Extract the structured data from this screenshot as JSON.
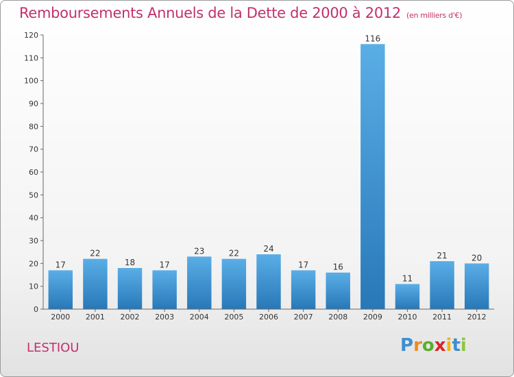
{
  "title": "Remboursements Annuels de la Dette de 2000 à 2012",
  "unit": "(en milliers d'€)",
  "commune": "LESTIOU",
  "logo": {
    "letters": [
      "P",
      "r",
      "o",
      "x",
      "i",
      "t",
      "i"
    ],
    "colors": [
      "#3b8fd0",
      "#f08a1c",
      "#5aae2e",
      "#d6262a",
      "#f2b41b",
      "#3b8fd0",
      "#8cc63f"
    ]
  },
  "colors": {
    "bar_top": "#5aaee6",
    "bar_bottom": "#2878b8",
    "title": "#c2306a",
    "axis": "#666666",
    "grid": "#e0e0e0"
  },
  "chart_data": {
    "type": "bar",
    "categories": [
      "2000",
      "2001",
      "2002",
      "2003",
      "2004",
      "2005",
      "2006",
      "2007",
      "2008",
      "2009",
      "2010",
      "2011",
      "2012"
    ],
    "values": [
      17,
      22,
      18,
      17,
      23,
      22,
      24,
      17,
      16,
      116,
      11,
      21,
      20
    ],
    "title": "Remboursements Annuels de la Dette de 2000 à 2012",
    "xlabel": "",
    "ylabel": "",
    "ylim": [
      0,
      120
    ],
    "yticks": [
      0,
      10,
      20,
      30,
      40,
      50,
      60,
      70,
      80,
      90,
      100,
      110,
      120
    ],
    "grid": false,
    "data_labels": true
  }
}
